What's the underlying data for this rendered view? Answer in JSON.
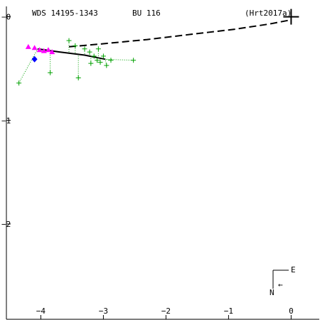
{
  "header": {
    "wds_id": "WDS 14195-1343",
    "discoverer": "BU  116",
    "reference": "(Hrt2017a)"
  },
  "compass": {
    "east_label": "E",
    "north_label": "N",
    "arrow_glyph": "←"
  },
  "colors": {
    "axis": "#000000",
    "orbit": "#000000",
    "observations": "#00a000",
    "speckle_points": "#ff00ff",
    "predicted_point": "#0000ff",
    "primary_star": "#000000"
  },
  "chart_data": {
    "type": "scatter",
    "title": "",
    "xlabel": "",
    "ylabel": "",
    "xlim": [
      -4.55,
      0.45
    ],
    "ylim": [
      -2.92,
      0.1
    ],
    "x_ticks": [
      -4,
      -3,
      -2,
      -1,
      0
    ],
    "x_tick_labels": [
      "−4",
      "−3",
      "−2",
      "−1",
      "0"
    ],
    "y_ticks": [
      0,
      -1,
      -2
    ],
    "y_tick_labels": [
      "−0",
      "−1",
      "−2"
    ],
    "grid": false,
    "primary_star": {
      "x": 0.0,
      "y": 0.0
    },
    "orbit_fit": {
      "style": "solid",
      "points": [
        {
          "x": -4.05,
          "y": -0.31
        },
        {
          "x": -3.7,
          "y": -0.34
        },
        {
          "x": -3.3,
          "y": -0.37
        },
        {
          "x": -2.97,
          "y": -0.41
        }
      ]
    },
    "orbit_extension": {
      "style": "dashed",
      "points": [
        {
          "x": -3.55,
          "y": -0.29
        },
        {
          "x": -3.0,
          "y": -0.26
        },
        {
          "x": -2.3,
          "y": -0.22
        },
        {
          "x": -1.6,
          "y": -0.17
        },
        {
          "x": -0.9,
          "y": -0.12
        },
        {
          "x": -0.35,
          "y": -0.07
        },
        {
          "x": 0.0,
          "y": -0.03
        }
      ]
    },
    "series": [
      {
        "marker": "plus",
        "color": "#00a000",
        "values": [
          {
            "x": -4.35,
            "y": -0.64
          },
          {
            "x": -3.85,
            "y": -0.54
          },
          {
            "x": -3.4,
            "y": -0.59
          },
          {
            "x": -3.55,
            "y": -0.23
          },
          {
            "x": -3.45,
            "y": -0.28
          },
          {
            "x": -3.3,
            "y": -0.31
          },
          {
            "x": -3.22,
            "y": -0.34
          },
          {
            "x": -3.15,
            "y": -0.38
          },
          {
            "x": -3.1,
            "y": -0.42
          },
          {
            "x": -3.05,
            "y": -0.44
          },
          {
            "x": -3.0,
            "y": -0.38
          },
          {
            "x": -2.95,
            "y": -0.47
          },
          {
            "x": -2.88,
            "y": -0.42
          },
          {
            "x": -3.2,
            "y": -0.45
          },
          {
            "x": -3.08,
            "y": -0.31
          },
          {
            "x": -2.52,
            "y": -0.42
          }
        ]
      },
      {
        "marker": "triangle",
        "color": "#ff00ff",
        "values": [
          {
            "x": -4.2,
            "y": -0.29
          },
          {
            "x": -4.1,
            "y": -0.3
          },
          {
            "x": -4.02,
            "y": -0.32
          },
          {
            "x": -3.95,
            "y": -0.33
          },
          {
            "x": -3.88,
            "y": -0.32
          },
          {
            "x": -3.82,
            "y": -0.34
          }
        ]
      },
      {
        "marker": "diamond",
        "color": "#0000ff",
        "values": [
          {
            "x": -4.1,
            "y": -0.41
          }
        ]
      }
    ]
  }
}
